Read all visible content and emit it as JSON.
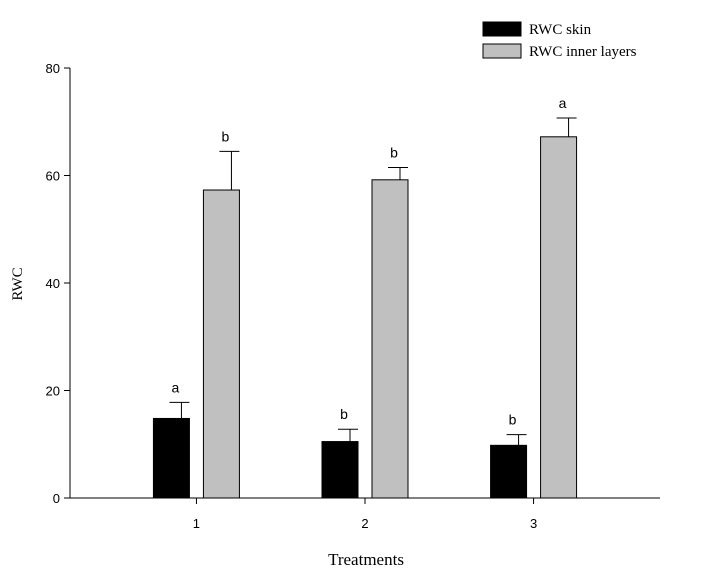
{
  "chart_data": {
    "type": "bar",
    "title": "",
    "xlabel": "Treatments",
    "ylabel": "RWC",
    "ylim": [
      0,
      80
    ],
    "yticks": [
      0,
      20,
      40,
      60,
      80
    ],
    "categories": [
      "1",
      "2",
      "3"
    ],
    "legend_position": "top-right",
    "grid": false,
    "series": [
      {
        "name": "RWC skin",
        "color": "#000000",
        "values": [
          14.8,
          10.5,
          9.8
        ],
        "errors": [
          3.0,
          2.3,
          2.0
        ],
        "labels": [
          "a",
          "b",
          "b"
        ]
      },
      {
        "name": "RWC inner layers",
        "color": "#c0c0c0",
        "values": [
          57.3,
          59.2,
          67.2
        ],
        "errors": [
          7.2,
          2.3,
          3.5
        ],
        "labels": [
          "b",
          "b",
          "a"
        ]
      }
    ]
  }
}
